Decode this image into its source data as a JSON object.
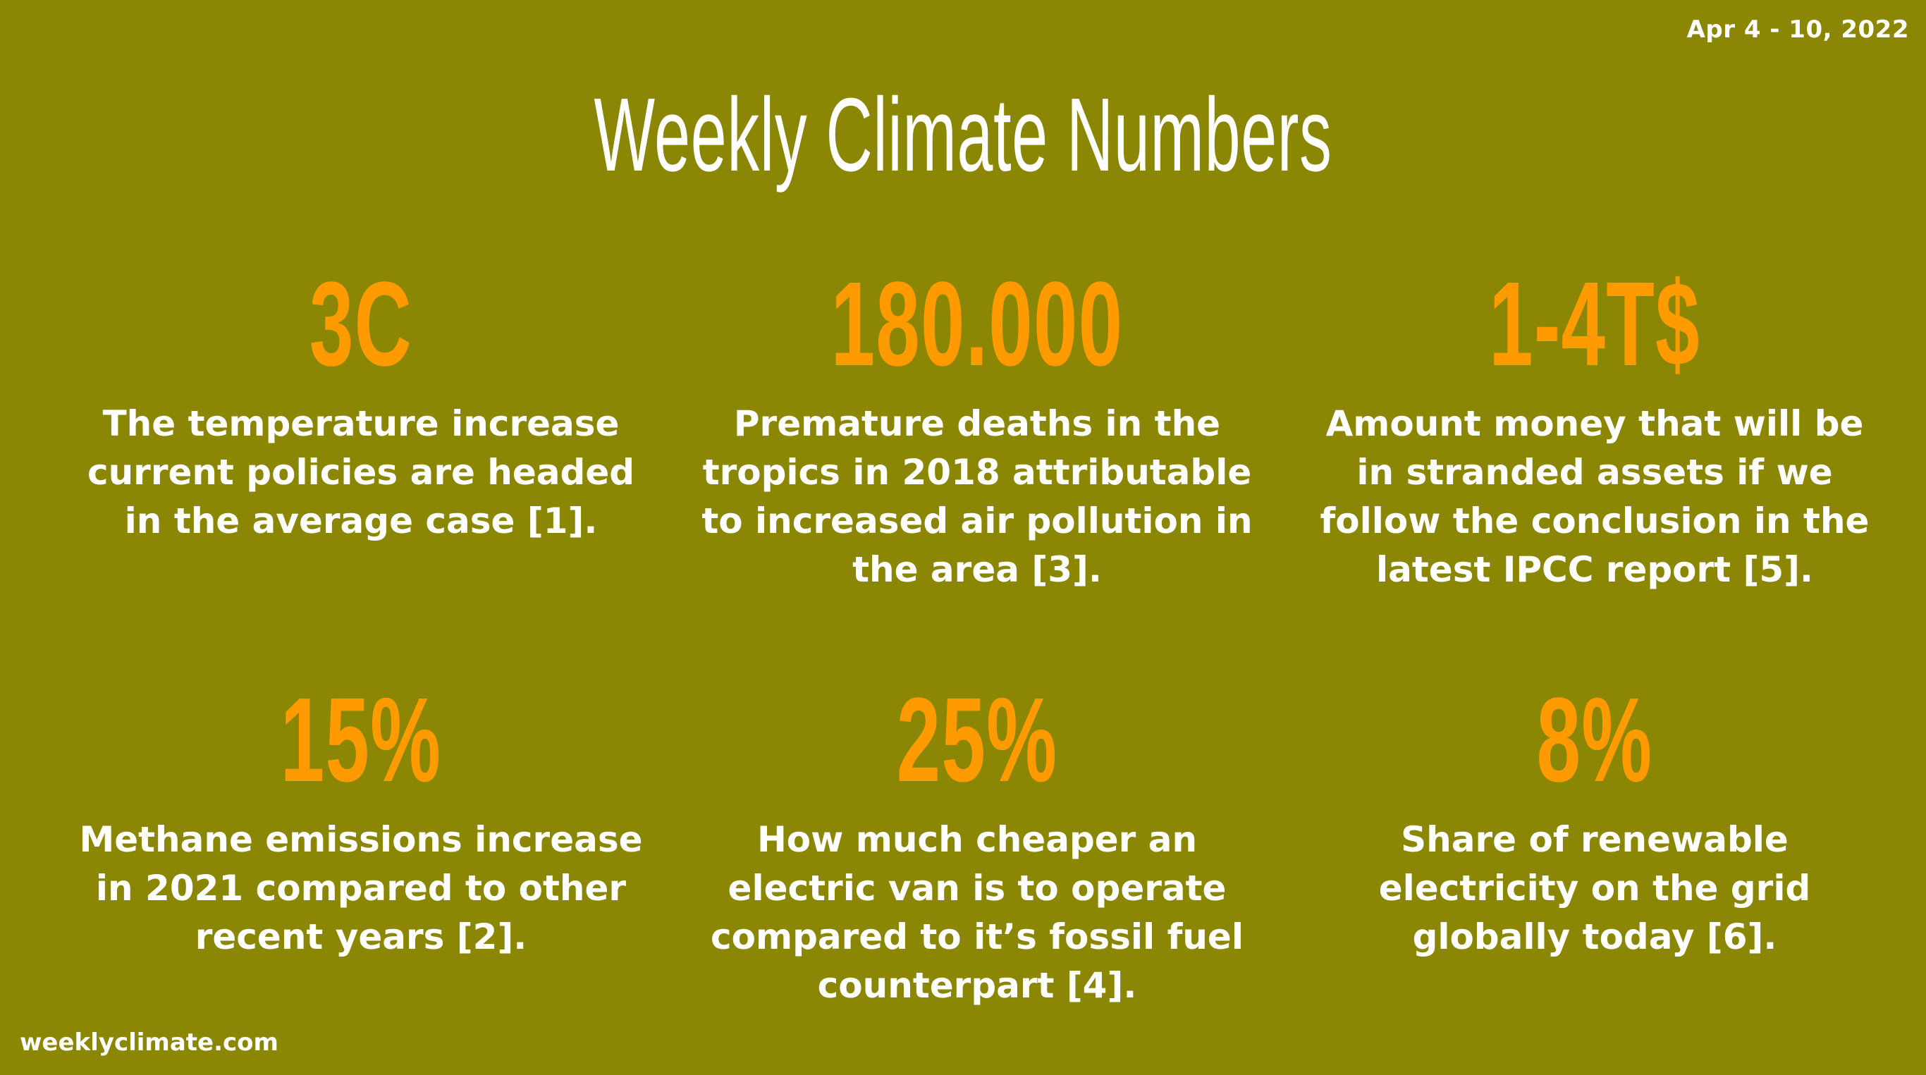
{
  "date": "Apr 4 - 10, 2022",
  "title": "Weekly Climate Numbers",
  "stats": [
    {
      "value": "3C",
      "description": "The temperature increase current policies are headed in the average case [1]."
    },
    {
      "value": "180.000",
      "description": "Premature deaths in the tropics in 2018 attributable to increased air pollution in the area [3]."
    },
    {
      "value": "1-4T$",
      "description": "Amount money that will be in stranded assets if we follow the conclusion in the latest IPCC report [5]."
    },
    {
      "value": "15%",
      "description": "Methane emissions increase in 2021 compared to other recent years [2]."
    },
    {
      "value": "25%",
      "description": "How much cheaper an electric van is to operate compared to it’s fossil fuel counterpart [4]."
    },
    {
      "value": "8%",
      "description": "Share of renewable electricity on the grid globally today [6]."
    }
  ],
  "footer": {
    "site": "weeklyclimate.com"
  },
  "colors": {
    "background": "#8b8704",
    "accent": "#ff9a00",
    "text": "#ffffff"
  }
}
